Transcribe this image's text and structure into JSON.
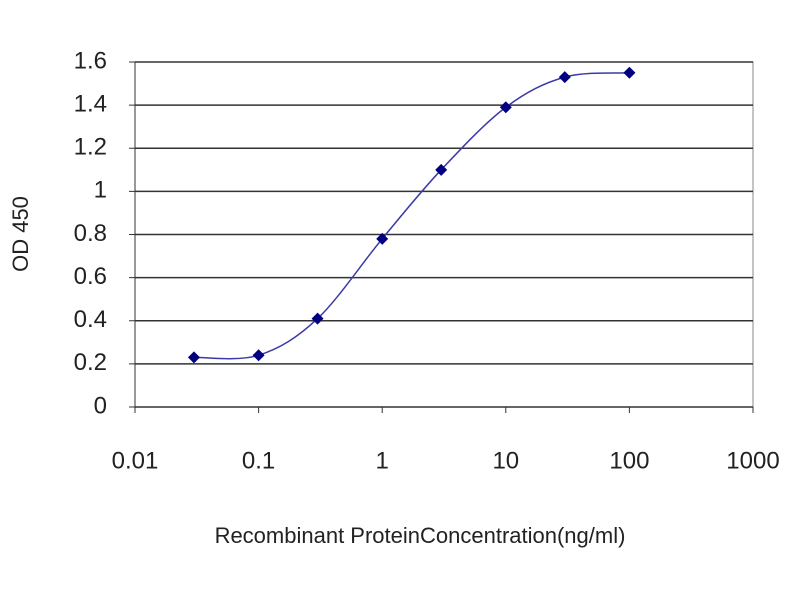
{
  "chart_data": {
    "type": "line",
    "x_label": "Recombinant ProteinConcentration(ng/ml)",
    "y_label": "OD 450",
    "x": [
      0.03,
      0.1,
      0.3,
      1,
      3,
      10,
      30,
      100
    ],
    "series": [
      {
        "color": "#000080",
        "values": [
          0.23,
          0.24,
          0.41,
          0.78,
          1.1,
          1.39,
          1.53,
          1.55
        ]
      }
    ],
    "xscale": "log",
    "xlim": [
      0.01,
      1000
    ],
    "xticks": [
      0.01,
      0.1,
      1,
      10,
      100,
      1000
    ],
    "ylim": [
      0,
      1.6
    ],
    "yticks": [
      0,
      0.2,
      0.4,
      0.6,
      0.8,
      1,
      1.2,
      1.4,
      1.6
    ],
    "grid": true
  }
}
